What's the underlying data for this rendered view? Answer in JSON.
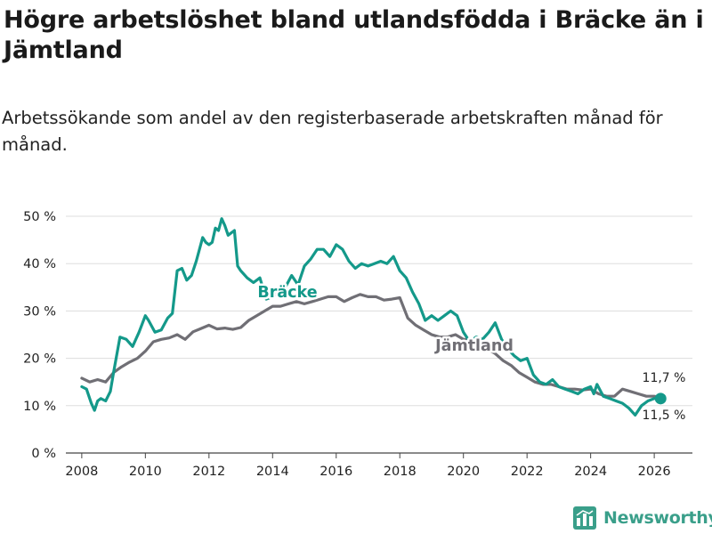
{
  "title": "Högre arbetslöshet bland utlandsfödda i Bräcke än i Jämtland",
  "subtitle": "Arbetssökande som andel av den registerbaserade arbetskraften månad för månad.",
  "brand": "Newsworthy",
  "colors": {
    "bracke": "#14998a",
    "jamtland": "#706f75",
    "grid": "#dddddd",
    "axis": "#444444",
    "text": "#1a1a1a"
  },
  "chart_data": {
    "type": "line",
    "title": "Högre arbetslöshet bland utlandsfödda i Bräcke än i Jämtland",
    "xlabel": "",
    "ylabel": "",
    "xlim": [
      2007.5,
      2027.2
    ],
    "ylim": [
      0,
      50
    ],
    "yticks": [
      0,
      10,
      20,
      30,
      40,
      50
    ],
    "ytick_labels": [
      "0 %",
      "10 %",
      "20 %",
      "30 %",
      "40 %",
      "50 %"
    ],
    "xticks": [
      2008,
      2010,
      2012,
      2014,
      2016,
      2018,
      2020,
      2022,
      2024,
      2026
    ],
    "xtick_labels": [
      "2008",
      "2010",
      "2012",
      "2014",
      "2016",
      "2018",
      "2020",
      "2022",
      "2024",
      "2026"
    ],
    "grid": true,
    "series": [
      {
        "name": "Jämtland",
        "key": "jamtland",
        "label": "Jämtland",
        "end_label": "11,7 %",
        "end_value": 11.7,
        "x": [
          2008.0,
          2008.25,
          2008.5,
          2008.75,
          2009.0,
          2009.25,
          2009.5,
          2009.75,
          2010.0,
          2010.25,
          2010.5,
          2010.75,
          2011.0,
          2011.25,
          2011.5,
          2011.75,
          2012.0,
          2012.25,
          2012.5,
          2012.75,
          2013.0,
          2013.25,
          2013.5,
          2013.75,
          2014.0,
          2014.25,
          2014.5,
          2014.75,
          2015.0,
          2015.25,
          2015.5,
          2015.75,
          2016.0,
          2016.25,
          2016.5,
          2016.75,
          2017.0,
          2017.25,
          2017.5,
          2017.75,
          2018.0,
          2018.25,
          2018.5,
          2018.75,
          2019.0,
          2019.25,
          2019.5,
          2019.75,
          2020.0,
          2020.25,
          2020.5,
          2020.75,
          2021.0,
          2021.25,
          2021.5,
          2021.75,
          2022.0,
          2022.25,
          2022.5,
          2022.75,
          2023.0,
          2023.25,
          2023.5,
          2023.75,
          2024.0,
          2024.25,
          2024.5,
          2024.75,
          2025.0,
          2025.25,
          2025.5,
          2025.75,
          2026.0,
          2026.2
        ],
        "values": [
          15.8,
          15.0,
          15.5,
          15.0,
          17.0,
          18.2,
          19.2,
          20.0,
          21.5,
          23.5,
          24.0,
          24.3,
          25.0,
          24.0,
          25.6,
          26.3,
          27.0,
          26.2,
          26.4,
          26.1,
          26.5,
          28.0,
          29.0,
          30.0,
          31.0,
          31.0,
          31.5,
          32.0,
          31.5,
          32.0,
          32.5,
          33.0,
          33.0,
          32.0,
          32.8,
          33.5,
          33.0,
          33.0,
          32.3,
          32.5,
          32.8,
          28.5,
          27.0,
          26.0,
          25.0,
          24.5,
          24.5,
          25.0,
          24.0,
          24.0,
          23.5,
          22.0,
          21.0,
          19.5,
          18.5,
          17.0,
          16.0,
          15.0,
          14.5,
          14.5,
          14.0,
          13.5,
          13.5,
          13.3,
          13.5,
          12.5,
          12.0,
          12.0,
          13.5,
          13.0,
          12.5,
          12.0,
          12.0,
          11.7
        ]
      },
      {
        "name": "Bräcke",
        "key": "bracke",
        "label": "Bräcke",
        "end_label": "11,5 %",
        "end_value": 11.5,
        "x": [
          2008.0,
          2008.15,
          2008.3,
          2008.4,
          2008.5,
          2008.6,
          2008.75,
          2008.9,
          2009.0,
          2009.2,
          2009.4,
          2009.6,
          2009.8,
          2010.0,
          2010.1,
          2010.3,
          2010.5,
          2010.7,
          2010.85,
          2011.0,
          2011.15,
          2011.3,
          2011.45,
          2011.6,
          2011.8,
          2011.9,
          2012.0,
          2012.1,
          2012.2,
          2012.3,
          2012.4,
          2012.5,
          2012.6,
          2012.8,
          2012.9,
          2013.0,
          2013.2,
          2013.4,
          2013.6,
          2013.8,
          2014.0,
          2014.2,
          2014.4,
          2014.6,
          2014.8,
          2015.0,
          2015.2,
          2015.4,
          2015.6,
          2015.8,
          2016.0,
          2016.2,
          2016.4,
          2016.6,
          2016.8,
          2017.0,
          2017.2,
          2017.4,
          2017.6,
          2017.8,
          2018.0,
          2018.2,
          2018.4,
          2018.6,
          2018.8,
          2019.0,
          2019.2,
          2019.4,
          2019.6,
          2019.8,
          2020.0,
          2020.2,
          2020.4,
          2020.6,
          2020.8,
          2021.0,
          2021.2,
          2021.4,
          2021.6,
          2021.8,
          2022.0,
          2022.2,
          2022.4,
          2022.6,
          2022.8,
          2023.0,
          2023.2,
          2023.4,
          2023.6,
          2023.8,
          2024.0,
          2024.1,
          2024.2,
          2024.4,
          2024.6,
          2024.8,
          2025.0,
          2025.2,
          2025.4,
          2025.6,
          2025.8,
          2026.0,
          2026.2
        ],
        "values": [
          14.0,
          13.5,
          10.5,
          9.0,
          11.0,
          11.5,
          11.0,
          13.0,
          17.0,
          24.5,
          24.0,
          22.5,
          25.5,
          29.0,
          28.0,
          25.5,
          26.0,
          28.5,
          29.5,
          38.5,
          39.0,
          36.5,
          37.5,
          40.5,
          45.5,
          44.5,
          44.0,
          44.5,
          47.5,
          47.0,
          49.5,
          48.0,
          46.0,
          47.0,
          39.5,
          38.5,
          37.0,
          36.0,
          37.0,
          32.5,
          33.0,
          34.0,
          35.0,
          37.5,
          35.5,
          39.5,
          41.0,
          43.0,
          43.0,
          41.5,
          44.0,
          43.0,
          40.5,
          39.0,
          40.0,
          39.5,
          40.0,
          40.5,
          40.0,
          41.5,
          38.5,
          37.0,
          34.0,
          31.5,
          28.0,
          29.0,
          28.0,
          29.0,
          30.0,
          29.0,
          25.5,
          23.5,
          24.5,
          24.0,
          25.5,
          27.5,
          24.0,
          22.0,
          20.5,
          19.5,
          20.0,
          16.5,
          15.0,
          14.5,
          15.5,
          14.0,
          13.5,
          13.0,
          12.5,
          13.5,
          14.0,
          12.5,
          14.5,
          12.0,
          11.5,
          11.0,
          10.5,
          9.5,
          8.0,
          10.0,
          11.0,
          11.5,
          11.5
        ]
      }
    ]
  }
}
